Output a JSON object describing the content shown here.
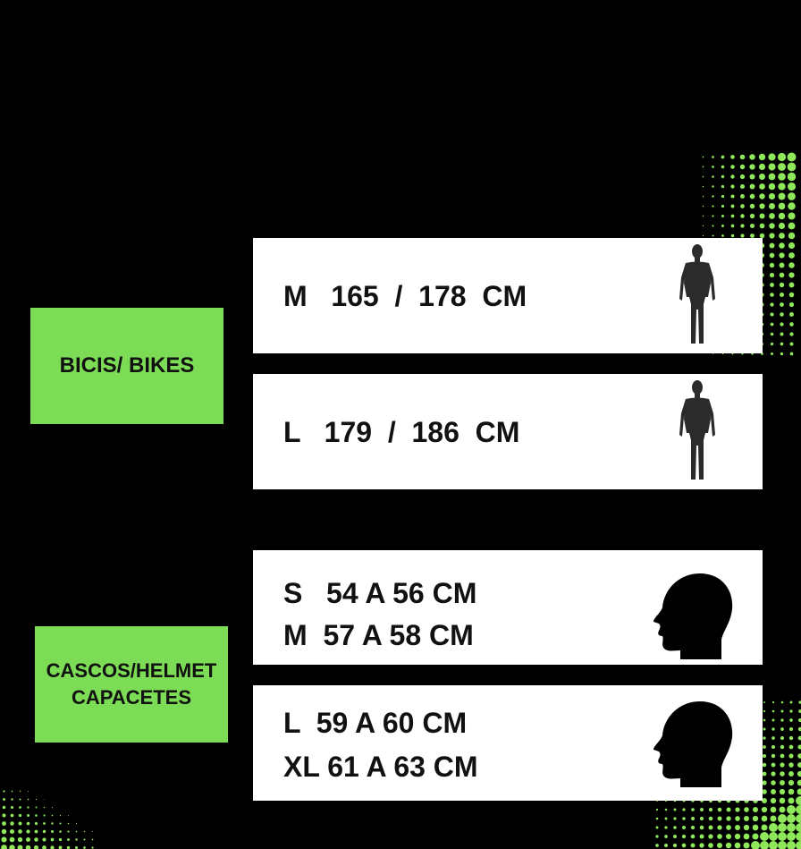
{
  "labels": {
    "bikes": "BICIS/ BIKES",
    "helmet_line1": "CASCOS/HELMET",
    "helmet_line2": "CAPACETES"
  },
  "bikes_sizes": [
    {
      "text": "M   165  /  178  CM"
    },
    {
      "text": "L   179  /  186  CM"
    }
  ],
  "helmet_sizes": [
    {
      "line1": "S   54 A 56 CM",
      "line2": "M  57 A 58 CM"
    },
    {
      "line1": "L  59 A 60 CM",
      "line2": "XL 61 A 63 CM"
    }
  ],
  "icons": {
    "body": "human-body-silhouette-icon",
    "head": "head-silhouette-icon"
  },
  "colors": {
    "background": "#000000",
    "label_green": "#7ddc55",
    "card": "#ffffff",
    "halftone_green": "#8ee85a",
    "text": "#111111"
  }
}
